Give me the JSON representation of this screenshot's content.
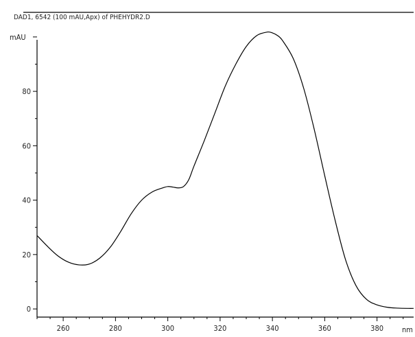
{
  "chart_data": {
    "type": "line",
    "title": "DAD1, 6542 (100 mAU,Apx) of PHEHYDR2.D",
    "ylabel": "mAU",
    "xlabel": "nm",
    "xlim": [
      250,
      394
    ],
    "ylim": [
      -3,
      104
    ],
    "x_ticks": [
      260,
      280,
      300,
      320,
      340,
      360,
      380
    ],
    "y_ticks": [
      0,
      20,
      40,
      60,
      80
    ],
    "grid": false,
    "legend": "none",
    "line_color": "#000000",
    "series": [
      {
        "x": [
          250,
          254,
          258,
          262,
          266,
          270,
          274,
          278,
          282,
          286,
          290,
          294,
          298,
          300,
          302,
          304,
          306,
          308,
          310,
          314,
          318,
          322,
          326,
          330,
          334,
          338,
          340,
          342,
          344,
          348,
          352,
          356,
          360,
          364,
          368,
          372,
          376,
          380,
          384,
          388,
          392,
          394
        ],
        "y": [
          27,
          23,
          19.5,
          17.2,
          16.2,
          16.5,
          18.7,
          22.7,
          28.5,
          35.0,
          40.0,
          43.0,
          44.5,
          45.0,
          44.8,
          44.5,
          45.0,
          47.5,
          52.5,
          62.0,
          72.0,
          82.0,
          90.0,
          96.5,
          100.5,
          101.8,
          101.5,
          100.5,
          98.5,
          92.0,
          81.0,
          66.0,
          49.0,
          32.5,
          18.0,
          8.5,
          3.5,
          1.5,
          0.6,
          0.3,
          0.2,
          0.2
        ]
      }
    ]
  }
}
